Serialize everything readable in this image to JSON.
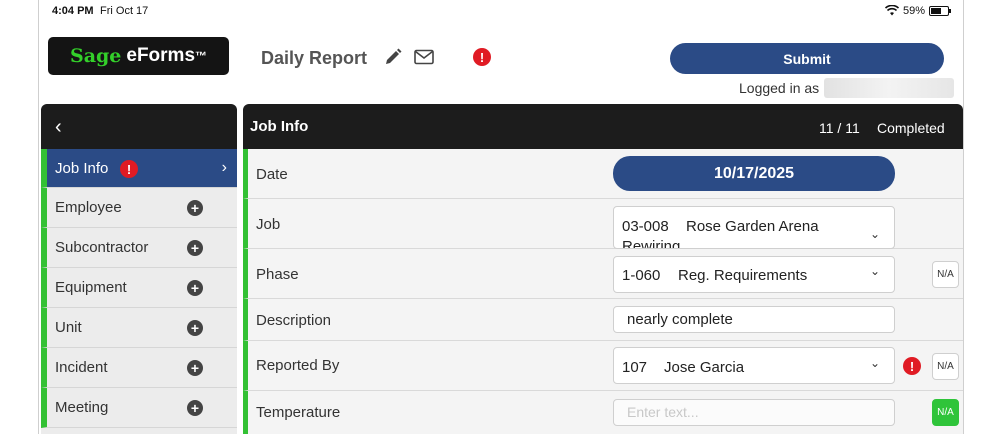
{
  "status_bar": {
    "time": "4:04 PM",
    "date": "Fri Oct 17",
    "battery": "59%"
  },
  "header": {
    "logo": {
      "sage": "Sage",
      "product": "eForms",
      "tm": "™"
    },
    "title": "Daily Report",
    "submit_label": "Submit",
    "logged_in_label": "Logged in as",
    "alert_icon": "!"
  },
  "sidebar": {
    "back_icon": "‹",
    "items": [
      {
        "label": "Job Info"
      },
      {
        "label": "Employee"
      },
      {
        "label": "Subcontractor"
      },
      {
        "label": "Equipment"
      },
      {
        "label": "Unit"
      },
      {
        "label": "Incident"
      },
      {
        "label": "Meeting"
      }
    ]
  },
  "panel": {
    "title": "Job Info",
    "progress": "11 / 11",
    "status": "Completed",
    "fields": {
      "date": {
        "label": "Date",
        "value": "10/17/2025"
      },
      "job": {
        "label": "Job",
        "code": "03-008",
        "name": "Rose Garden Arena",
        "name2": "Rewiring"
      },
      "phase": {
        "label": "Phase",
        "code": "1-060",
        "name": "Reg. Requirements",
        "na": "N/A"
      },
      "description": {
        "label": "Description",
        "value": "nearly complete"
      },
      "reported_by": {
        "label": "Reported By",
        "code": "107",
        "name": "Jose Garcia",
        "na": "N/A"
      },
      "temperature": {
        "label": "Temperature",
        "placeholder": "Enter text...",
        "na": "N/A"
      }
    }
  },
  "colors": {
    "brand_blue": "#2b4b86",
    "green": "#33c134",
    "alert_red": "#e01b24",
    "dark": "#1c1c1c"
  }
}
